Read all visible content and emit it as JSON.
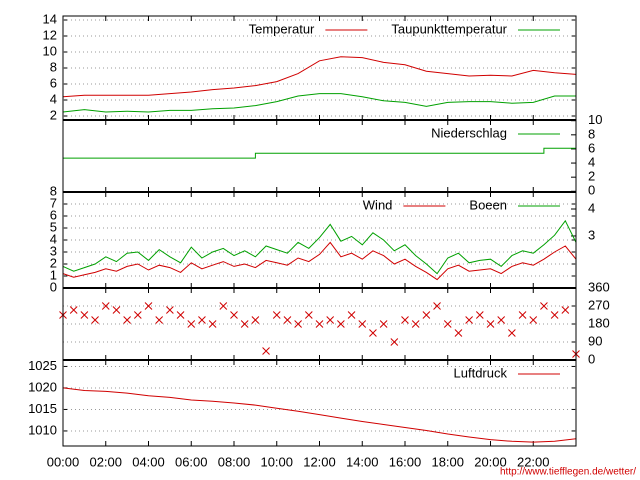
{
  "chart_data": [
    {
      "type": "line",
      "xlim": [
        0,
        24
      ],
      "ylim": [
        1.5,
        14.5
      ],
      "yticks": [
        2,
        4,
        6,
        8,
        10,
        12,
        14
      ],
      "grid": true,
      "x": [
        0,
        1,
        2,
        3,
        4,
        5,
        6,
        7,
        8,
        9,
        10,
        11,
        12,
        13,
        14,
        15,
        16,
        17,
        18,
        19,
        20,
        21,
        22,
        23,
        24
      ],
      "series": [
        {
          "name": "Temperatur",
          "color": "#d00000",
          "values": [
            4.4,
            4.6,
            4.6,
            4.6,
            4.6,
            4.8,
            5.0,
            5.3,
            5.5,
            5.8,
            6.3,
            7.3,
            8.9,
            9.4,
            9.3,
            8.7,
            8.4,
            7.6,
            7.3,
            7.0,
            7.1,
            7.0,
            7.7,
            7.4,
            7.2
          ]
        },
        {
          "name": "Taupunkttemperatur",
          "color": "#00a000",
          "values": [
            2.5,
            2.8,
            2.5,
            2.6,
            2.5,
            2.7,
            2.7,
            2.9,
            3.0,
            3.3,
            3.8,
            4.5,
            4.8,
            4.8,
            4.4,
            3.9,
            3.7,
            3.2,
            3.7,
            3.8,
            3.8,
            3.6,
            3.7,
            4.5,
            4.5
          ]
        }
      ]
    },
    {
      "type": "line",
      "xlim": [
        0,
        24
      ],
      "y2lim": [
        -0.1,
        10.1
      ],
      "y2ticks": [
        0,
        2,
        4,
        6,
        8,
        10
      ],
      "grid": false,
      "x": [
        0,
        9,
        9,
        22.5,
        22.5,
        24
      ],
      "series": [
        {
          "name": "Niederschlag",
          "color": "#00a000",
          "axis": "y2",
          "values": [
            4.7,
            4.7,
            5.4,
            5.4,
            6.1,
            6.1
          ]
        }
      ]
    },
    {
      "type": "line",
      "xlim": [
        0,
        24
      ],
      "ylim": [
        0,
        8
      ],
      "yticks": [
        0,
        1,
        2,
        3,
        4,
        5,
        6,
        7,
        8
      ],
      "y2lim": [
        1.07,
        4.63
      ],
      "y2ticks": [
        3,
        4
      ],
      "grid": true,
      "x": [
        0,
        0.5,
        1,
        1.5,
        2,
        2.5,
        3,
        3.5,
        4,
        4.5,
        5,
        5.5,
        6,
        6.5,
        7,
        7.5,
        8,
        8.5,
        9,
        9.5,
        10,
        10.5,
        11,
        11.5,
        12,
        12.5,
        13,
        13.5,
        14,
        14.5,
        15,
        15.5,
        16,
        16.5,
        17,
        17.5,
        18,
        18.5,
        19,
        19.5,
        20,
        20.5,
        21,
        21.5,
        22,
        22.5,
        23,
        23.5,
        24
      ],
      "series": [
        {
          "name": "Wind",
          "color": "#d00000",
          "values": [
            1.2,
            0.9,
            1.1,
            1.3,
            1.6,
            1.4,
            1.8,
            2.0,
            1.5,
            1.9,
            1.7,
            1.3,
            2.1,
            1.6,
            1.9,
            2.2,
            1.8,
            2.0,
            1.7,
            2.3,
            2.1,
            1.9,
            2.5,
            2.2,
            2.8,
            3.8,
            2.6,
            2.9,
            2.4,
            3.1,
            2.7,
            2.0,
            2.4,
            1.8,
            1.3,
            0.7,
            1.6,
            1.9,
            1.4,
            1.5,
            1.6,
            1.2,
            1.8,
            2.1,
            1.9,
            2.4,
            3.0,
            3.5,
            2.4
          ]
        },
        {
          "name": "Boeen",
          "color": "#00a000",
          "values": [
            1.8,
            1.4,
            1.7,
            2.0,
            2.6,
            2.2,
            2.9,
            3.0,
            2.3,
            3.2,
            2.6,
            2.1,
            3.4,
            2.5,
            3.0,
            3.3,
            2.7,
            3.1,
            2.6,
            3.5,
            3.2,
            2.9,
            3.8,
            3.3,
            4.2,
            5.3,
            3.9,
            4.3,
            3.6,
            4.6,
            4.0,
            3.1,
            3.6,
            2.7,
            2.0,
            1.2,
            2.5,
            2.9,
            2.1,
            2.3,
            2.4,
            1.8,
            2.7,
            3.1,
            2.9,
            3.6,
            4.4,
            5.6,
            3.8
          ]
        }
      ]
    },
    {
      "type": "scatter",
      "xlim": [
        0,
        24
      ],
      "y2lim": [
        0,
        360
      ],
      "y2ticks": [
        0,
        90,
        180,
        270,
        360
      ],
      "grid": true,
      "x": [
        0,
        0.5,
        1,
        1.5,
        2,
        2.5,
        3,
        3.5,
        4,
        4.5,
        5,
        5.5,
        6,
        6.5,
        7,
        7.5,
        8,
        8.5,
        9,
        9.5,
        10,
        10.5,
        11,
        11.5,
        12,
        12.5,
        13,
        13.5,
        14,
        14.5,
        15,
        15.5,
        16,
        16.5,
        17,
        17.5,
        18,
        18.5,
        19,
        19.5,
        20,
        20.5,
        21,
        21.5,
        22,
        22.5,
        23,
        23.5,
        24
      ],
      "series": [
        {
          "color": "#d00000",
          "axis": "y2",
          "values": [
            225,
            250,
            225,
            200,
            270,
            250,
            200,
            225,
            270,
            200,
            250,
            225,
            180,
            200,
            180,
            270,
            225,
            180,
            200,
            45,
            225,
            200,
            180,
            225,
            180,
            200,
            180,
            225,
            180,
            135,
            180,
            90,
            200,
            180,
            225,
            270,
            180,
            135,
            200,
            225,
            180,
            200,
            135,
            225,
            200,
            270,
            225,
            250,
            30
          ]
        }
      ]
    },
    {
      "type": "line",
      "xlim": [
        0,
        24
      ],
      "ylim": [
        1006.5,
        1026.5
      ],
      "yticks": [
        1010,
        1015,
        1020,
        1025
      ],
      "grid": true,
      "x": [
        0,
        1,
        2,
        3,
        4,
        5,
        6,
        7,
        8,
        9,
        10,
        11,
        12,
        13,
        14,
        15,
        16,
        17,
        18,
        19,
        20,
        21,
        22,
        23,
        24
      ],
      "xticks": [
        {
          "value": 0,
          "label": "00:00"
        },
        {
          "value": 2,
          "label": "02:00"
        },
        {
          "value": 4,
          "label": "04:00"
        },
        {
          "value": 6,
          "label": "06:00"
        },
        {
          "value": 8,
          "label": "08:00"
        },
        {
          "value": 10,
          "label": "10:00"
        },
        {
          "value": 12,
          "label": "12:00"
        },
        {
          "value": 14,
          "label": "14:00"
        },
        {
          "value": 16,
          "label": "16:00"
        },
        {
          "value": 18,
          "label": "18:00"
        },
        {
          "value": 20,
          "label": "20:00"
        },
        {
          "value": 22,
          "label": "22:00"
        }
      ],
      "series": [
        {
          "name": "Luftdruck",
          "color": "#d00000",
          "values": [
            1020,
            1019.4,
            1019.2,
            1018.8,
            1018.2,
            1017.8,
            1017.2,
            1016.9,
            1016.5,
            1016.0,
            1015.3,
            1014.6,
            1013.8,
            1013,
            1012.2,
            1011.5,
            1010.8,
            1010.1,
            1009.3,
            1008.6,
            1008.0,
            1007.6,
            1007.4,
            1007.6,
            1008.2
          ]
        }
      ],
      "footer": "http://www.tiefflegen.de/wetter/"
    }
  ]
}
